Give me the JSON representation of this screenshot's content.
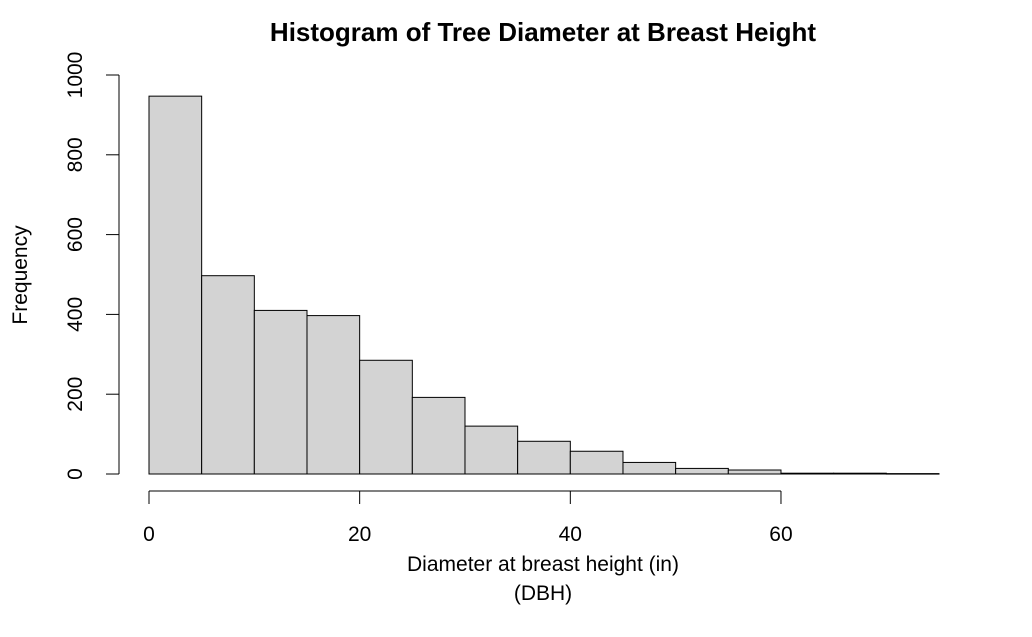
{
  "chart_data": {
    "type": "bar",
    "title": "Histogram of Tree Diameter at Breast Height",
    "xlabel": "Diameter at breast height (in)",
    "xlabel_line2": "(DBH)",
    "ylabel": "Frequency",
    "bins": [
      {
        "start": 0,
        "end": 5,
        "count": 947
      },
      {
        "start": 5,
        "end": 10,
        "count": 497
      },
      {
        "start": 10,
        "end": 15,
        "count": 410
      },
      {
        "start": 15,
        "end": 20,
        "count": 397
      },
      {
        "start": 20,
        "end": 25,
        "count": 285
      },
      {
        "start": 25,
        "end": 30,
        "count": 192
      },
      {
        "start": 30,
        "end": 35,
        "count": 120
      },
      {
        "start": 35,
        "end": 40,
        "count": 82
      },
      {
        "start": 40,
        "end": 45,
        "count": 57
      },
      {
        "start": 45,
        "end": 50,
        "count": 29
      },
      {
        "start": 50,
        "end": 55,
        "count": 14
      },
      {
        "start": 55,
        "end": 60,
        "count": 10
      },
      {
        "start": 60,
        "end": 65,
        "count": 2
      },
      {
        "start": 65,
        "end": 70,
        "count": 2
      },
      {
        "start": 70,
        "end": 75,
        "count": 1
      }
    ],
    "xlim": [
      0,
      75
    ],
    "ylim": [
      0,
      1000
    ],
    "xticks": [
      0,
      20,
      40,
      60
    ],
    "yticks": [
      0,
      200,
      400,
      600,
      800,
      1000
    ],
    "bar_color": "#d3d3d3",
    "grid": false,
    "legend": "none"
  }
}
